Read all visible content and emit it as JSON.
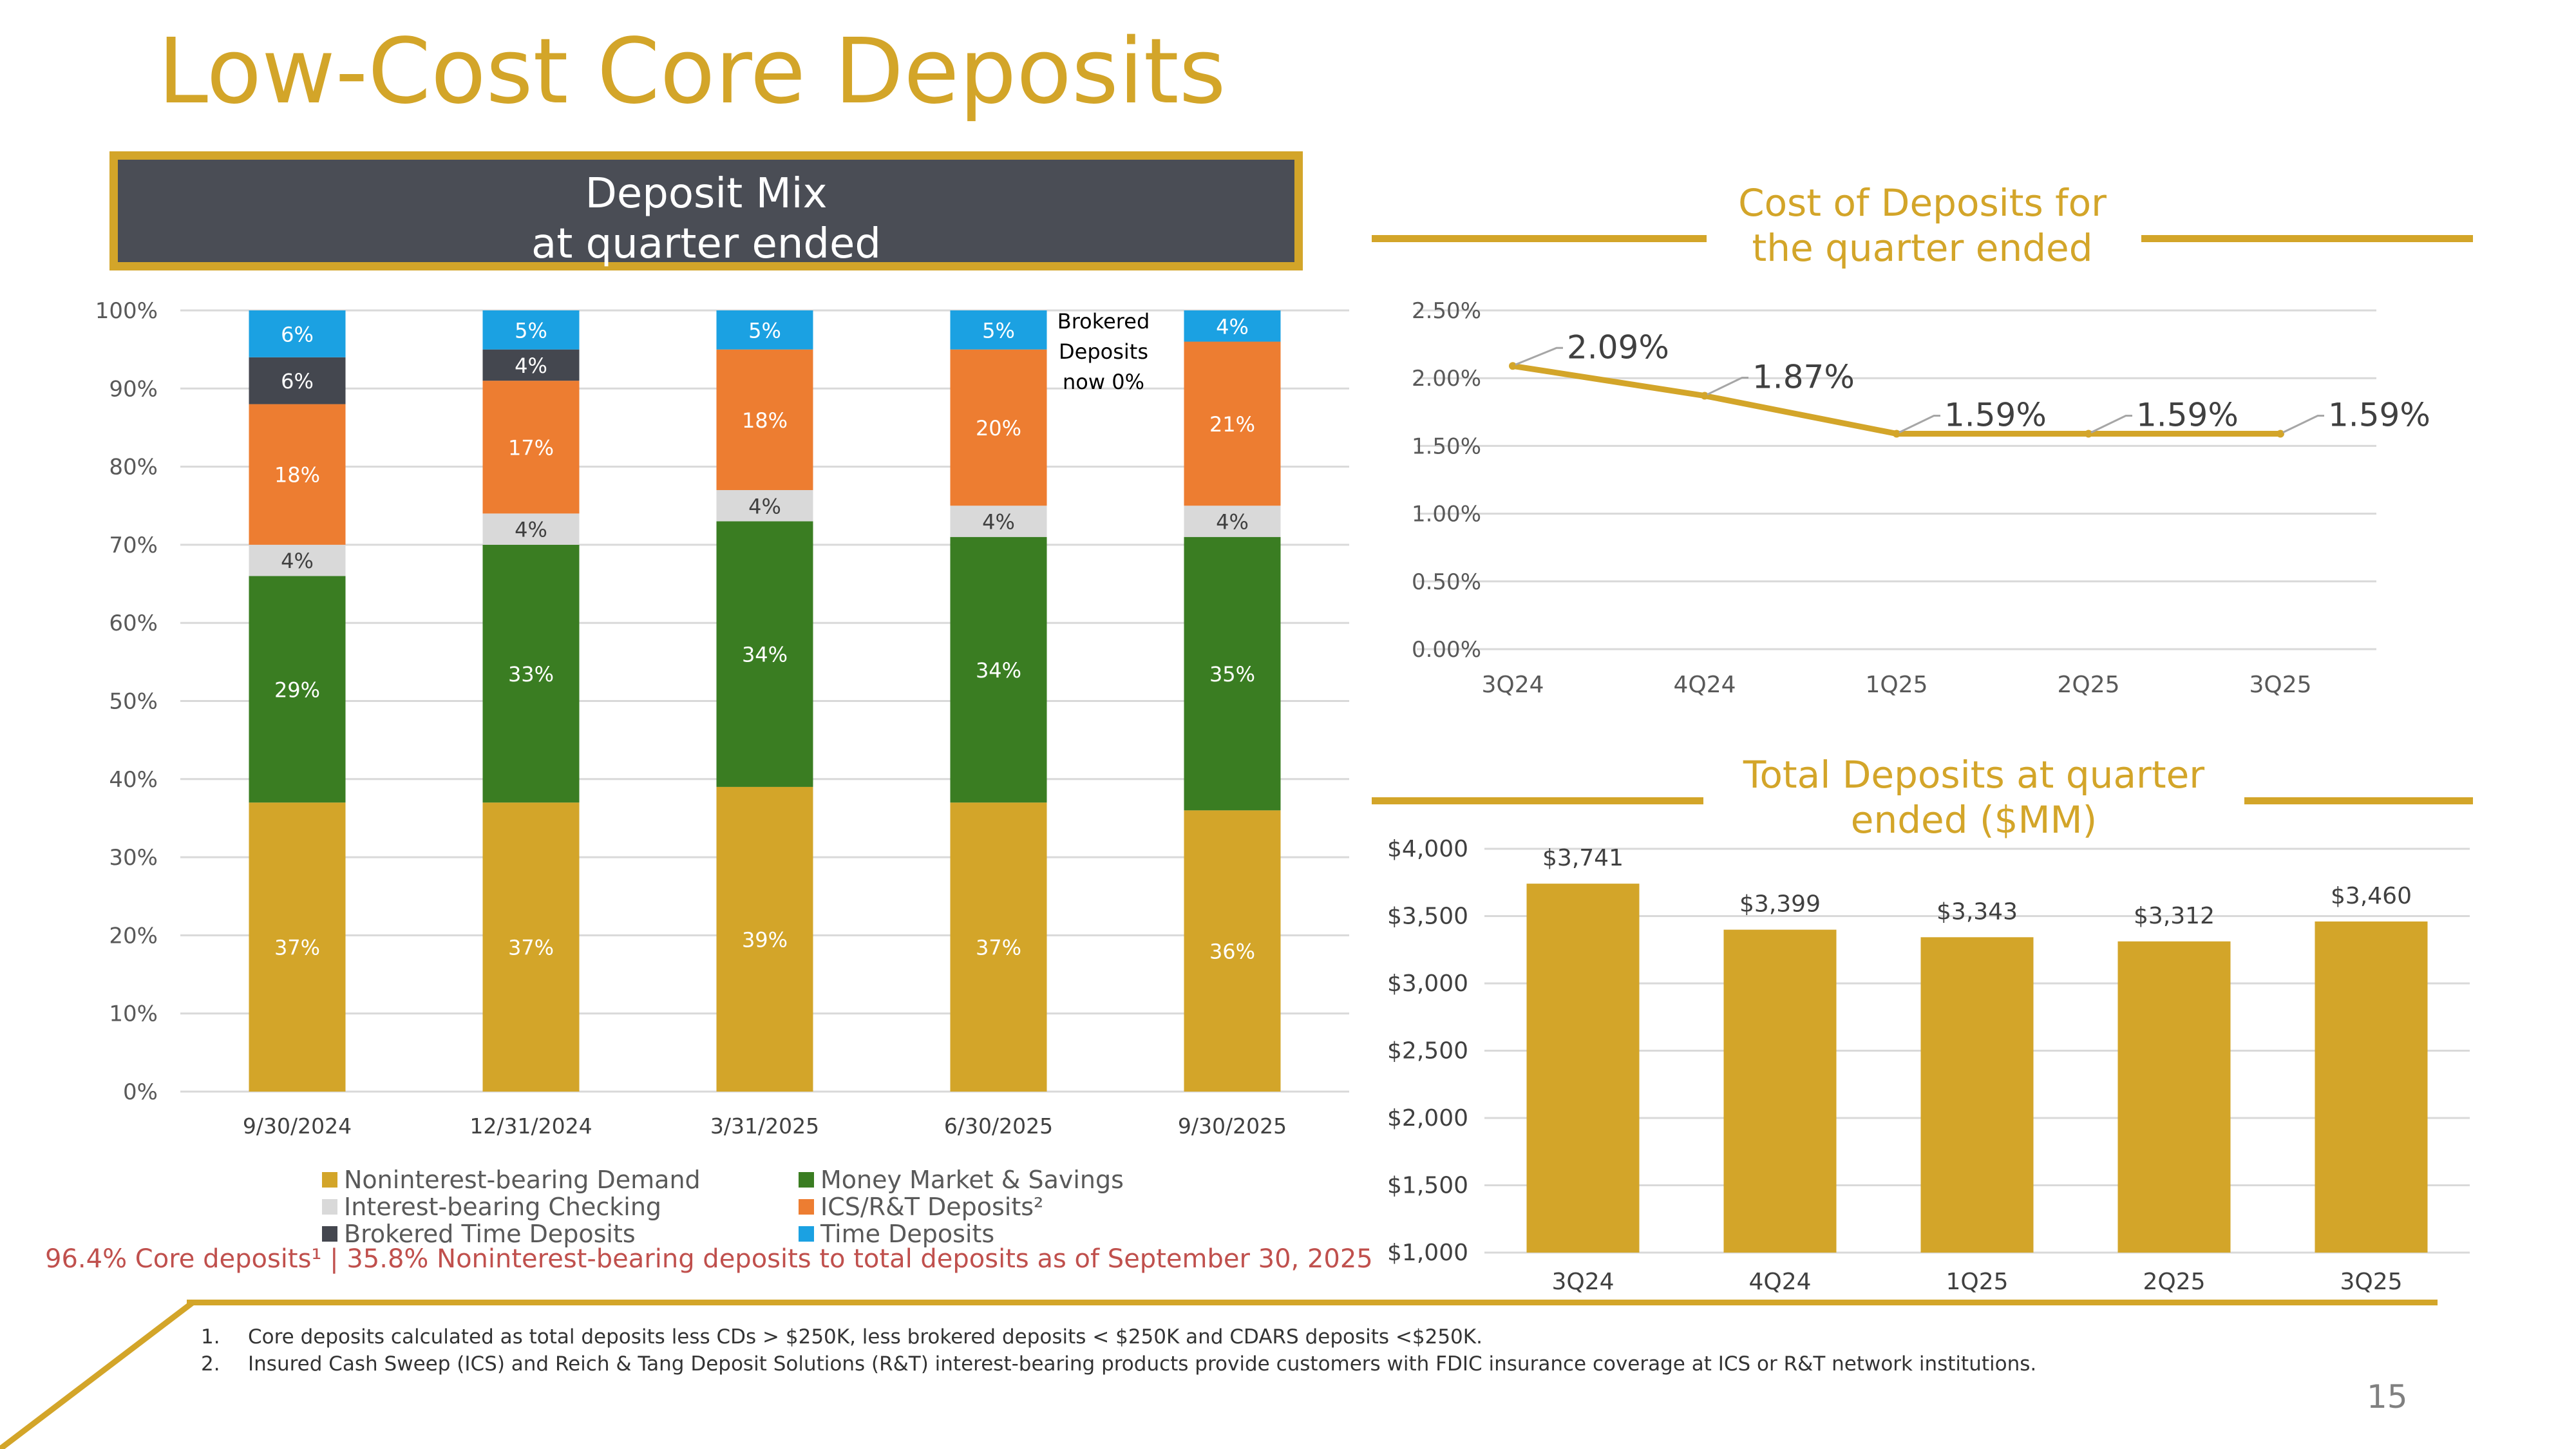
{
  "title": "Low-Cost Core Deposits",
  "deposit_mix_header": {
    "line1": "Deposit Mix",
    "line2": "at quarter ended"
  },
  "cost_header": {
    "line1": "Cost of Deposits for",
    "line2": "the quarter ended"
  },
  "total_header": {
    "line1": "Total Deposits at quarter",
    "line2": "ended ($MM)"
  },
  "brokered_note": [
    "Brokered",
    "Deposits",
    "now 0%"
  ],
  "core_note": "96.4% Core deposits¹ | 35.8% Noninterest-bearing deposits to total deposits as of September 30, 2025",
  "footnotes": [
    {
      "num": "1.",
      "text": "Core deposits calculated as total deposits less CDs > $250K, less brokered deposits < $250K and CDARS deposits <$250K."
    },
    {
      "num": "2.",
      "text": "Insured Cash Sweep (ICS) and Reich & Tang Deposit Solutions (R&T) interest-bearing products provide customers with FDIC insurance coverage at ICS or R&T network institutions."
    }
  ],
  "page_number": "15",
  "colors": {
    "gold": "#D3A529",
    "dark_header": "#4A4D55",
    "noninterest": "#D3A529",
    "money_market": "#3A7D22",
    "interest_checking": "#D9D9D9",
    "ics": "#ED7D31",
    "brokered": "#44474F",
    "time": "#1BA1E2"
  },
  "chart_data": [
    {
      "type": "bar",
      "stacked": true,
      "categories": [
        "9/30/2024",
        "12/31/2024",
        "3/31/2025",
        "6/30/2025",
        "9/30/2025"
      ],
      "y_ticks": [
        "0%",
        "10%",
        "20%",
        "30%",
        "40%",
        "50%",
        "60%",
        "70%",
        "80%",
        "90%",
        "100%"
      ],
      "ylim": [
        0,
        100
      ],
      "grid": true,
      "legend_position": "bottom",
      "series": [
        {
          "name": "Noninterest-bearing Demand",
          "values": [
            37,
            37,
            39,
            37,
            36
          ],
          "labels": [
            "37%",
            "37%",
            "39%",
            "37%",
            "36%"
          ]
        },
        {
          "name": "Money Market & Savings",
          "values": [
            29,
            33,
            34,
            34,
            35
          ],
          "labels": [
            "29%",
            "33%",
            "34%",
            "34%",
            "35%"
          ]
        },
        {
          "name": "Interest-bearing Checking",
          "values": [
            4,
            4,
            4,
            4,
            4
          ],
          "labels": [
            "4%",
            "4%",
            "4%",
            "4%",
            "4%"
          ]
        },
        {
          "name": "ICS/R&T Deposits²",
          "values": [
            18,
            17,
            18,
            20,
            21
          ],
          "labels": [
            "18%",
            "17%",
            "18%",
            "20%",
            "21%"
          ]
        },
        {
          "name": "Brokered Time Deposits",
          "values": [
            6,
            4,
            0,
            0,
            0
          ],
          "labels": [
            "6%",
            "4%",
            "",
            "",
            ""
          ]
        },
        {
          "name": "Time Deposits",
          "values": [
            6,
            5,
            5,
            5,
            4
          ],
          "labels": [
            "6%",
            "5%",
            "5%",
            "5%",
            "4%"
          ]
        }
      ]
    },
    {
      "type": "line",
      "categories": [
        "3Q24",
        "4Q24",
        "1Q25",
        "2Q25",
        "3Q25"
      ],
      "values": [
        2.09,
        1.87,
        1.59,
        1.59,
        1.59
      ],
      "labels": [
        "2.09%",
        "1.87%",
        "1.59%",
        "1.59%",
        "1.59%"
      ],
      "y_ticks": [
        "0.00%",
        "0.50%",
        "1.00%",
        "1.50%",
        "2.00%",
        "2.50%"
      ],
      "ylim": [
        0,
        2.5
      ],
      "grid": true
    },
    {
      "type": "bar",
      "categories": [
        "3Q24",
        "4Q24",
        "1Q25",
        "2Q25",
        "3Q25"
      ],
      "values": [
        3741,
        3399,
        3343,
        3312,
        3460
      ],
      "labels": [
        "$3,741",
        "$3,399",
        "$3,343",
        "$3,312",
        "$3,460"
      ],
      "y_ticks": [
        "$1,000",
        "$1,500",
        "$2,000",
        "$2,500",
        "$3,000",
        "$3,500",
        "$4,000"
      ],
      "ylim": [
        1000,
        4000
      ],
      "grid": true
    }
  ]
}
